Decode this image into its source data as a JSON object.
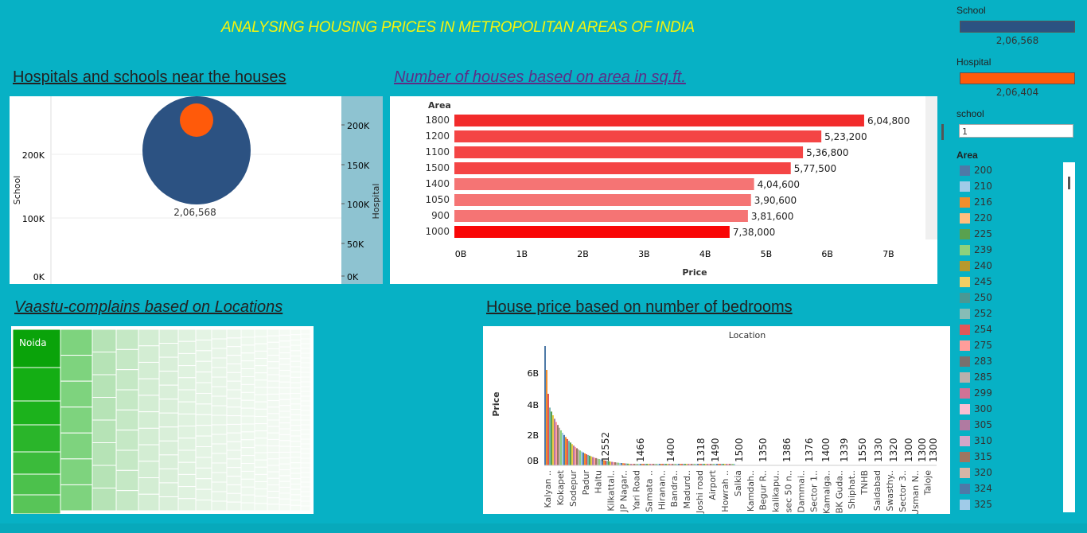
{
  "header": {
    "title": "ANALYSING HOUSING PRICES IN METROPOLITAN AREAS OF INDIA"
  },
  "sheets": {
    "hospitals": "Hospitals and schools near the houses",
    "houses": "Number of houses based on area in sq.ft.",
    "vaastu": "Vaastu-complains based on  Locations",
    "bedrooms": "House price based on number of bedrooms"
  },
  "sidebar": {
    "school_label": "School",
    "school_value": "2,06,568",
    "hospital_label": "Hospital",
    "hospital_value": "2,06,404",
    "school_filter_label": "school",
    "school_filter_value": "1",
    "area_label": "Area",
    "area_items": [
      {
        "label": "200",
        "color": "#4e79a7"
      },
      {
        "label": "210",
        "color": "#a0cbe8"
      },
      {
        "label": "216",
        "color": "#f28e2b"
      },
      {
        "label": "220",
        "color": "#ffbe7d"
      },
      {
        "label": "225",
        "color": "#59a14f"
      },
      {
        "label": "239",
        "color": "#8cd17d"
      },
      {
        "label": "240",
        "color": "#b6992d"
      },
      {
        "label": "245",
        "color": "#f1ce63"
      },
      {
        "label": "250",
        "color": "#499894"
      },
      {
        "label": "252",
        "color": "#86bcb6"
      },
      {
        "label": "254",
        "color": "#e15759"
      },
      {
        "label": "275",
        "color": "#ff9d9a"
      },
      {
        "label": "283",
        "color": "#79706e"
      },
      {
        "label": "285",
        "color": "#bab0ac"
      },
      {
        "label": "299",
        "color": "#d37295"
      },
      {
        "label": "300",
        "color": "#fabfd2"
      },
      {
        "label": "305",
        "color": "#b07aa1"
      },
      {
        "label": "310",
        "color": "#d4a6c8"
      },
      {
        "label": "315",
        "color": "#9d7660"
      },
      {
        "label": "320",
        "color": "#d7b5a6"
      },
      {
        "label": "324",
        "color": "#4e79a7"
      },
      {
        "label": "325",
        "color": "#a0cbe8"
      }
    ]
  },
  "chart_data": [
    {
      "type": "scatter",
      "title": "Hospitals and schools near the houses",
      "ylabel": "School",
      "y2label": "Hospital",
      "yticks": [
        "0K",
        "100K",
        "200K"
      ],
      "y2ticks": [
        "0K",
        "50K",
        "100K",
        "150K",
        "200K"
      ],
      "points": [
        {
          "series": "School",
          "value": 206568,
          "label": "2,06,568"
        },
        {
          "series": "Hospital",
          "value": 206404
        }
      ]
    },
    {
      "type": "bar",
      "title": "Number of houses based on area in sq.ft.",
      "ylabel": "Area",
      "xlabel": "Price",
      "categories": [
        "1800",
        "1200",
        "1100",
        "1500",
        "1400",
        "1050",
        "900",
        "1000"
      ],
      "values": [
        6.7,
        6.0,
        5.7,
        5.5,
        4.9,
        4.85,
        4.8,
        4.5
      ],
      "labels": [
        "6,04,800",
        "5,23,200",
        "5,36,800",
        "5,77,500",
        "4,04,600",
        "3,90,600",
        "3,81,600",
        "7,38,000"
      ],
      "xticks": [
        "0B",
        "1B",
        "2B",
        "3B",
        "4B",
        "5B",
        "6B",
        "7B"
      ],
      "xlim": [
        0,
        7.6
      ]
    },
    {
      "type": "heatmap",
      "title": "Vaastu-complains based on  Locations",
      "top_label": "Noida"
    },
    {
      "type": "bar",
      "title": "House price based on number of bedrooms",
      "top_label": "Location",
      "ylabel": "Price",
      "yticks": [
        "0B",
        "2B",
        "4B",
        "6B"
      ],
      "locations": [
        "Kalyan ..",
        "Kokapet",
        "Sodepur",
        "Padur",
        "Haltu",
        "Kilkattal..",
        "JP Nagar..",
        "Yari Road",
        "Samata ..",
        "Hiranan..",
        "Bandra..",
        "Madurd..",
        "Joshi road",
        "Airport",
        "Howrah ..",
        "Salkia",
        "Kamdah..",
        "Begur R..",
        "kalikapu..",
        "sec 50 n..",
        "Dammai..",
        "Sector 1..",
        "Kamalga..",
        "BK Guda..",
        "Shiphat..",
        "TNHB",
        "Saidabad",
        "Swasthy..",
        "Sector 3..",
        "Usman N..",
        "Taloje"
      ],
      "annotations": [
        "12552",
        "1466",
        "1400",
        "1318",
        "1490",
        "1500",
        "1350",
        "1386",
        "1376",
        "1400",
        "1339",
        "1550",
        "1330",
        "1320",
        "1300",
        "1300",
        "1300"
      ]
    }
  ]
}
